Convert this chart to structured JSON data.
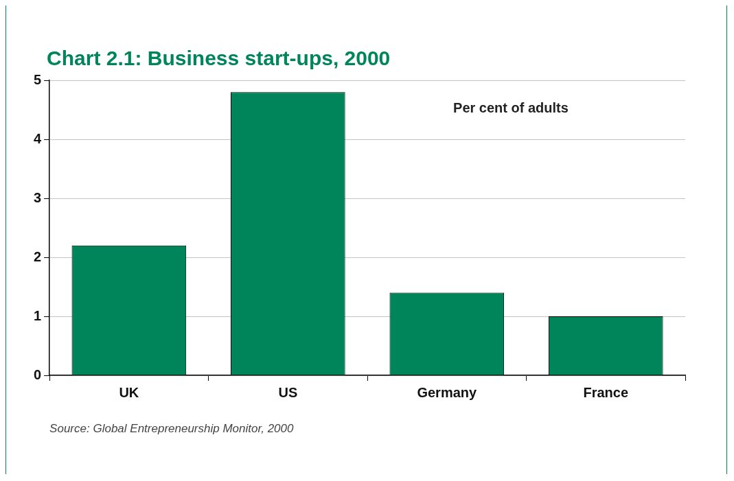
{
  "chart_data": {
    "type": "bar",
    "title": "Chart 2.1: Business start-ups, 2000",
    "ylabel": "Per cent of adults",
    "categories": [
      "UK",
      "US",
      "Germany",
      "France"
    ],
    "values": [
      2.2,
      4.8,
      1.4,
      1.0
    ],
    "color": "#00855a",
    "ylim": [
      0,
      5
    ],
    "yticks": [
      0,
      1,
      2,
      3,
      4,
      5
    ],
    "grid": "y",
    "legend": false,
    "annotations": [
      "Source: Global Entrepreneurship Monitor, 2000"
    ]
  }
}
